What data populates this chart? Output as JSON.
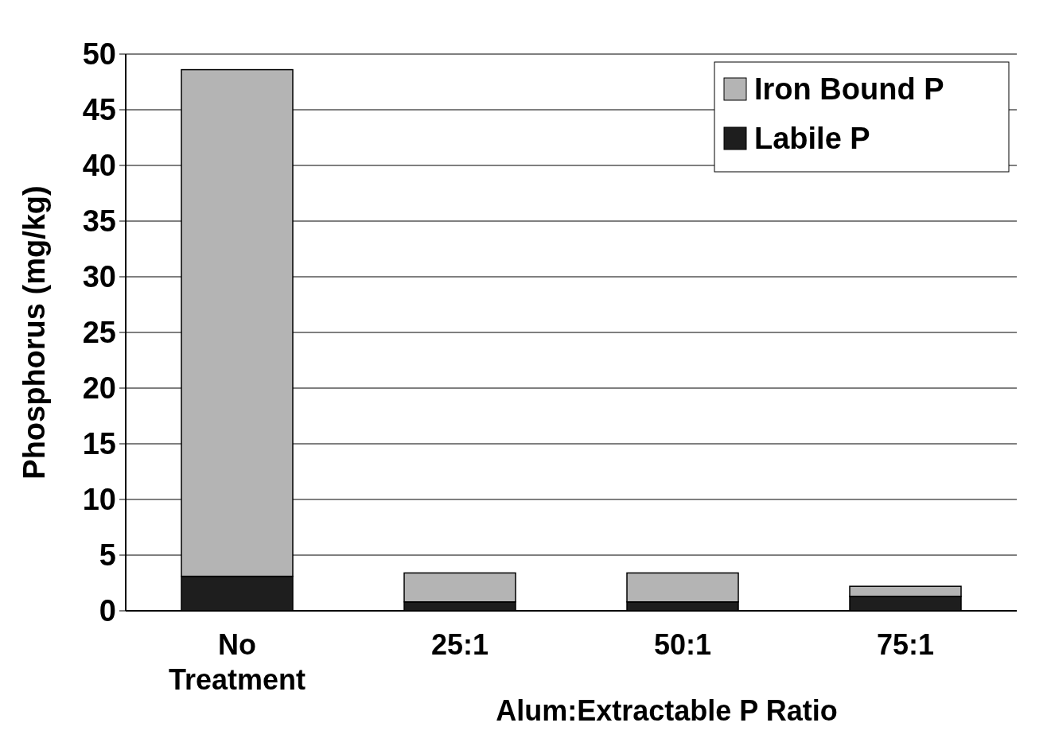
{
  "chart_data": {
    "type": "bar",
    "xlabel": "Alum:Extractable P Ratio",
    "ylabel": "Phosphorus (mg/kg)",
    "categories": [
      "No Treatment",
      "25:1",
      "50:1",
      "75:1"
    ],
    "stacked": true,
    "series": [
      {
        "name": "Labile P",
        "color": "#1e1e1e",
        "values": [
          3.1,
          0.8,
          0.8,
          1.3
        ]
      },
      {
        "name": "Iron Bound P",
        "color": "#b4b4b4",
        "values": [
          45.5,
          2.6,
          2.6,
          0.9
        ]
      }
    ],
    "ylim": [
      0,
      50
    ],
    "yticks": [
      0,
      5,
      10,
      15,
      20,
      25,
      30,
      35,
      40,
      45,
      50
    ],
    "grid": "y",
    "legend": "top right"
  }
}
